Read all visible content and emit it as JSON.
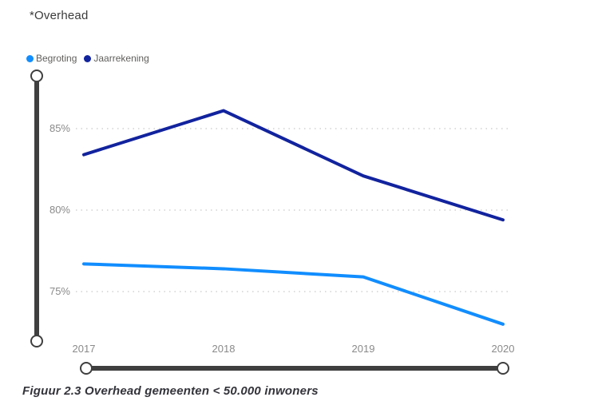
{
  "title": "*Overhead",
  "caption": "Figuur 2.3 Overhead gemeenten < 50.000 inwoners",
  "legend": {
    "items": [
      {
        "label": "Begroting",
        "color": "#118DFF"
      },
      {
        "label": "Jaarrekening",
        "color": "#12239E"
      }
    ]
  },
  "colors": {
    "accent_light_blue": "#118DFF",
    "accent_dark_blue": "#12239E",
    "axis_text": "#8a8a8a",
    "gridline": "#d2d2d2",
    "slider": "#3f3f3f"
  },
  "chart_data": {
    "type": "line",
    "categories": [
      "2017",
      "2018",
      "2019",
      "2020"
    ],
    "series": [
      {
        "name": "Begroting",
        "color": "#118DFF",
        "values": [
          76.7,
          76.4,
          75.9,
          73.0
        ]
      },
      {
        "name": "Jaarrekening",
        "color": "#12239E",
        "values": [
          83.4,
          86.1,
          82.1,
          79.4
        ]
      }
    ],
    "title": "*Overhead",
    "xlabel": "",
    "ylabel": "",
    "yticks": [
      75,
      80,
      85
    ],
    "ytick_suffix": "%",
    "ylim": [
      72.3,
      87.5
    ],
    "grid": "dotted-horizontal",
    "legend_position": "top-left"
  }
}
